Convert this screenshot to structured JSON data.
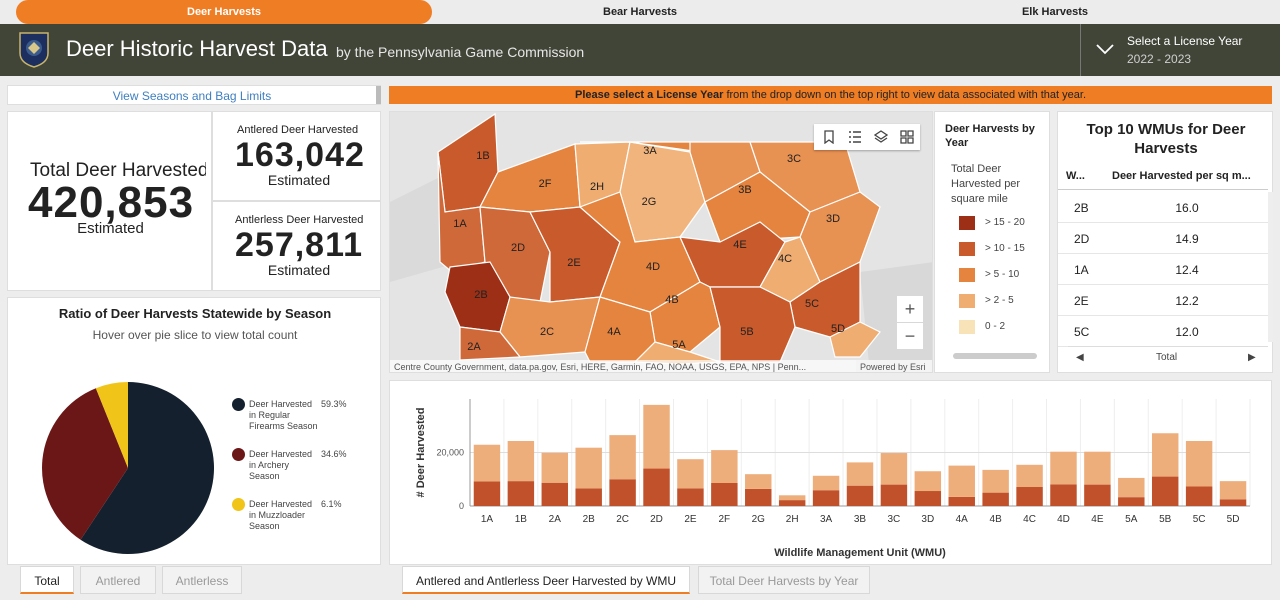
{
  "nav": {
    "tabs": [
      {
        "label": "Deer Harvests",
        "active": true
      },
      {
        "label": "Bear Harvests",
        "active": false
      },
      {
        "label": "Elk Harvests",
        "active": false
      }
    ]
  },
  "header": {
    "title": "Deer Historic Harvest Data",
    "subtitle": "by the Pennsylvania Game Commission",
    "year_label": "Select a License Year",
    "year_value": "2022 - 2023"
  },
  "links": {
    "seasons": "View Seasons and Bag Limits"
  },
  "banner": {
    "bold": "Please select a License Year",
    "rest": " from the drop down on the top right to view data associated with that year."
  },
  "totals": {
    "total_label": "Total Deer Harvested",
    "total_value": "420,853",
    "antlered_label": "Antlered Deer Harvested",
    "antlered_value": "163,042",
    "antlerless_label": "Antlerless Deer Harvested",
    "antlerless_value": "257,811",
    "estimated": "Estimated"
  },
  "pie": {
    "title": "Ratio of Deer Harvests Statewide by Season",
    "hint": "Hover over pie slice to view total count",
    "slices": [
      {
        "line1": "Deer Harvested",
        "line2": "in Regular",
        "line3": "Firearms Season",
        "pct": "59.3%",
        "value": 59.3,
        "color": "#14202e"
      },
      {
        "line1": "Deer Harvested",
        "line2": "in Archery",
        "line3": "Season",
        "pct": "34.6%",
        "value": 34.6,
        "color": "#6b1717"
      },
      {
        "line1": "Deer Harvested",
        "line2": "in Muzzloader",
        "line3": "Season",
        "pct": "6.1%",
        "value": 6.1,
        "color": "#f0c419"
      }
    ],
    "tabs": [
      "Total",
      "Antlered",
      "Antlerless"
    ]
  },
  "map": {
    "attribution": "Centre County Government, data.pa.gov, Esri, HERE, Garmin, FAO, NOAA, USGS, EPA, NPS | Penn...",
    "powered": "Powered by Esri",
    "zoom_in": "+",
    "zoom_out": "−",
    "legend_title": "Deer Harvests by Year",
    "legend_sub": "Total Deer Harvested per square mile",
    "legend_items": [
      {
        "label": "> 15 - 20",
        "color": "#9c2f16"
      },
      {
        "label": "> 10 - 15",
        "color": "#c85a2c"
      },
      {
        "label": "> 5 - 10",
        "color": "#e4843f"
      },
      {
        "label": "> 2 - 5",
        "color": "#efad72"
      },
      {
        "label": "0 - 2",
        "color": "#f8e2b8"
      }
    ],
    "wmus": [
      "1B",
      "1A",
      "2F",
      "2H",
      "2G",
      "3A",
      "3C",
      "3B",
      "3D",
      "2D",
      "2E",
      "4D",
      "4E",
      "4C",
      "2B",
      "4B",
      "5C",
      "2C",
      "4A",
      "5B",
      "5D",
      "2A",
      "5A"
    ]
  },
  "top10": {
    "title": "Top 10 WMUs for Deer Harvests",
    "col1": "W...",
    "col2": "Deer Harvested per sq m...",
    "rows": [
      {
        "wmu": "2B",
        "val": "16.0"
      },
      {
        "wmu": "2D",
        "val": "14.9"
      },
      {
        "wmu": "1A",
        "val": "12.4"
      },
      {
        "wmu": "2E",
        "val": "12.2"
      },
      {
        "wmu": "5C",
        "val": "12.0"
      }
    ],
    "footer": "Total"
  },
  "chart_data": {
    "type": "bar",
    "stacked": true,
    "ylabel": "# Deer Harvested",
    "xlabel": "Wildlife Management Unit (WMU)",
    "ylim": [
      0,
      40000
    ],
    "yticks": [
      "0",
      "20,000"
    ],
    "categories": [
      "1A",
      "1B",
      "2A",
      "2B",
      "2C",
      "2D",
      "2E",
      "2F",
      "2G",
      "2H",
      "3A",
      "3B",
      "3C",
      "3D",
      "4A",
      "4B",
      "4C",
      "4D",
      "4E",
      "5A",
      "5B",
      "5C",
      "5D"
    ],
    "series": [
      {
        "color": "#c0512a",
        "values": [
          9200,
          9300,
          8700,
          6600,
          10000,
          14000,
          6600,
          8600,
          6400,
          2200,
          5900,
          7600,
          8000,
          5600,
          3400,
          5000,
          7100,
          8100,
          8000,
          3300,
          11000,
          7300,
          2500
        ]
      },
      {
        "color": "#eeae7c",
        "values": [
          13700,
          15000,
          11200,
          15200,
          16500,
          23800,
          10900,
          12300,
          5500,
          1800,
          5400,
          8700,
          11800,
          7400,
          11700,
          8500,
          8300,
          12200,
          12300,
          7200,
          16200,
          17000,
          6800
        ]
      }
    ],
    "grid": true
  },
  "chart_tabs": [
    "Antlered and Antlerless Deer Harvested by WMU",
    "Total Deer Harvests by Year"
  ],
  "colors": {
    "accent": "#ef7d24",
    "header": "#414538"
  }
}
